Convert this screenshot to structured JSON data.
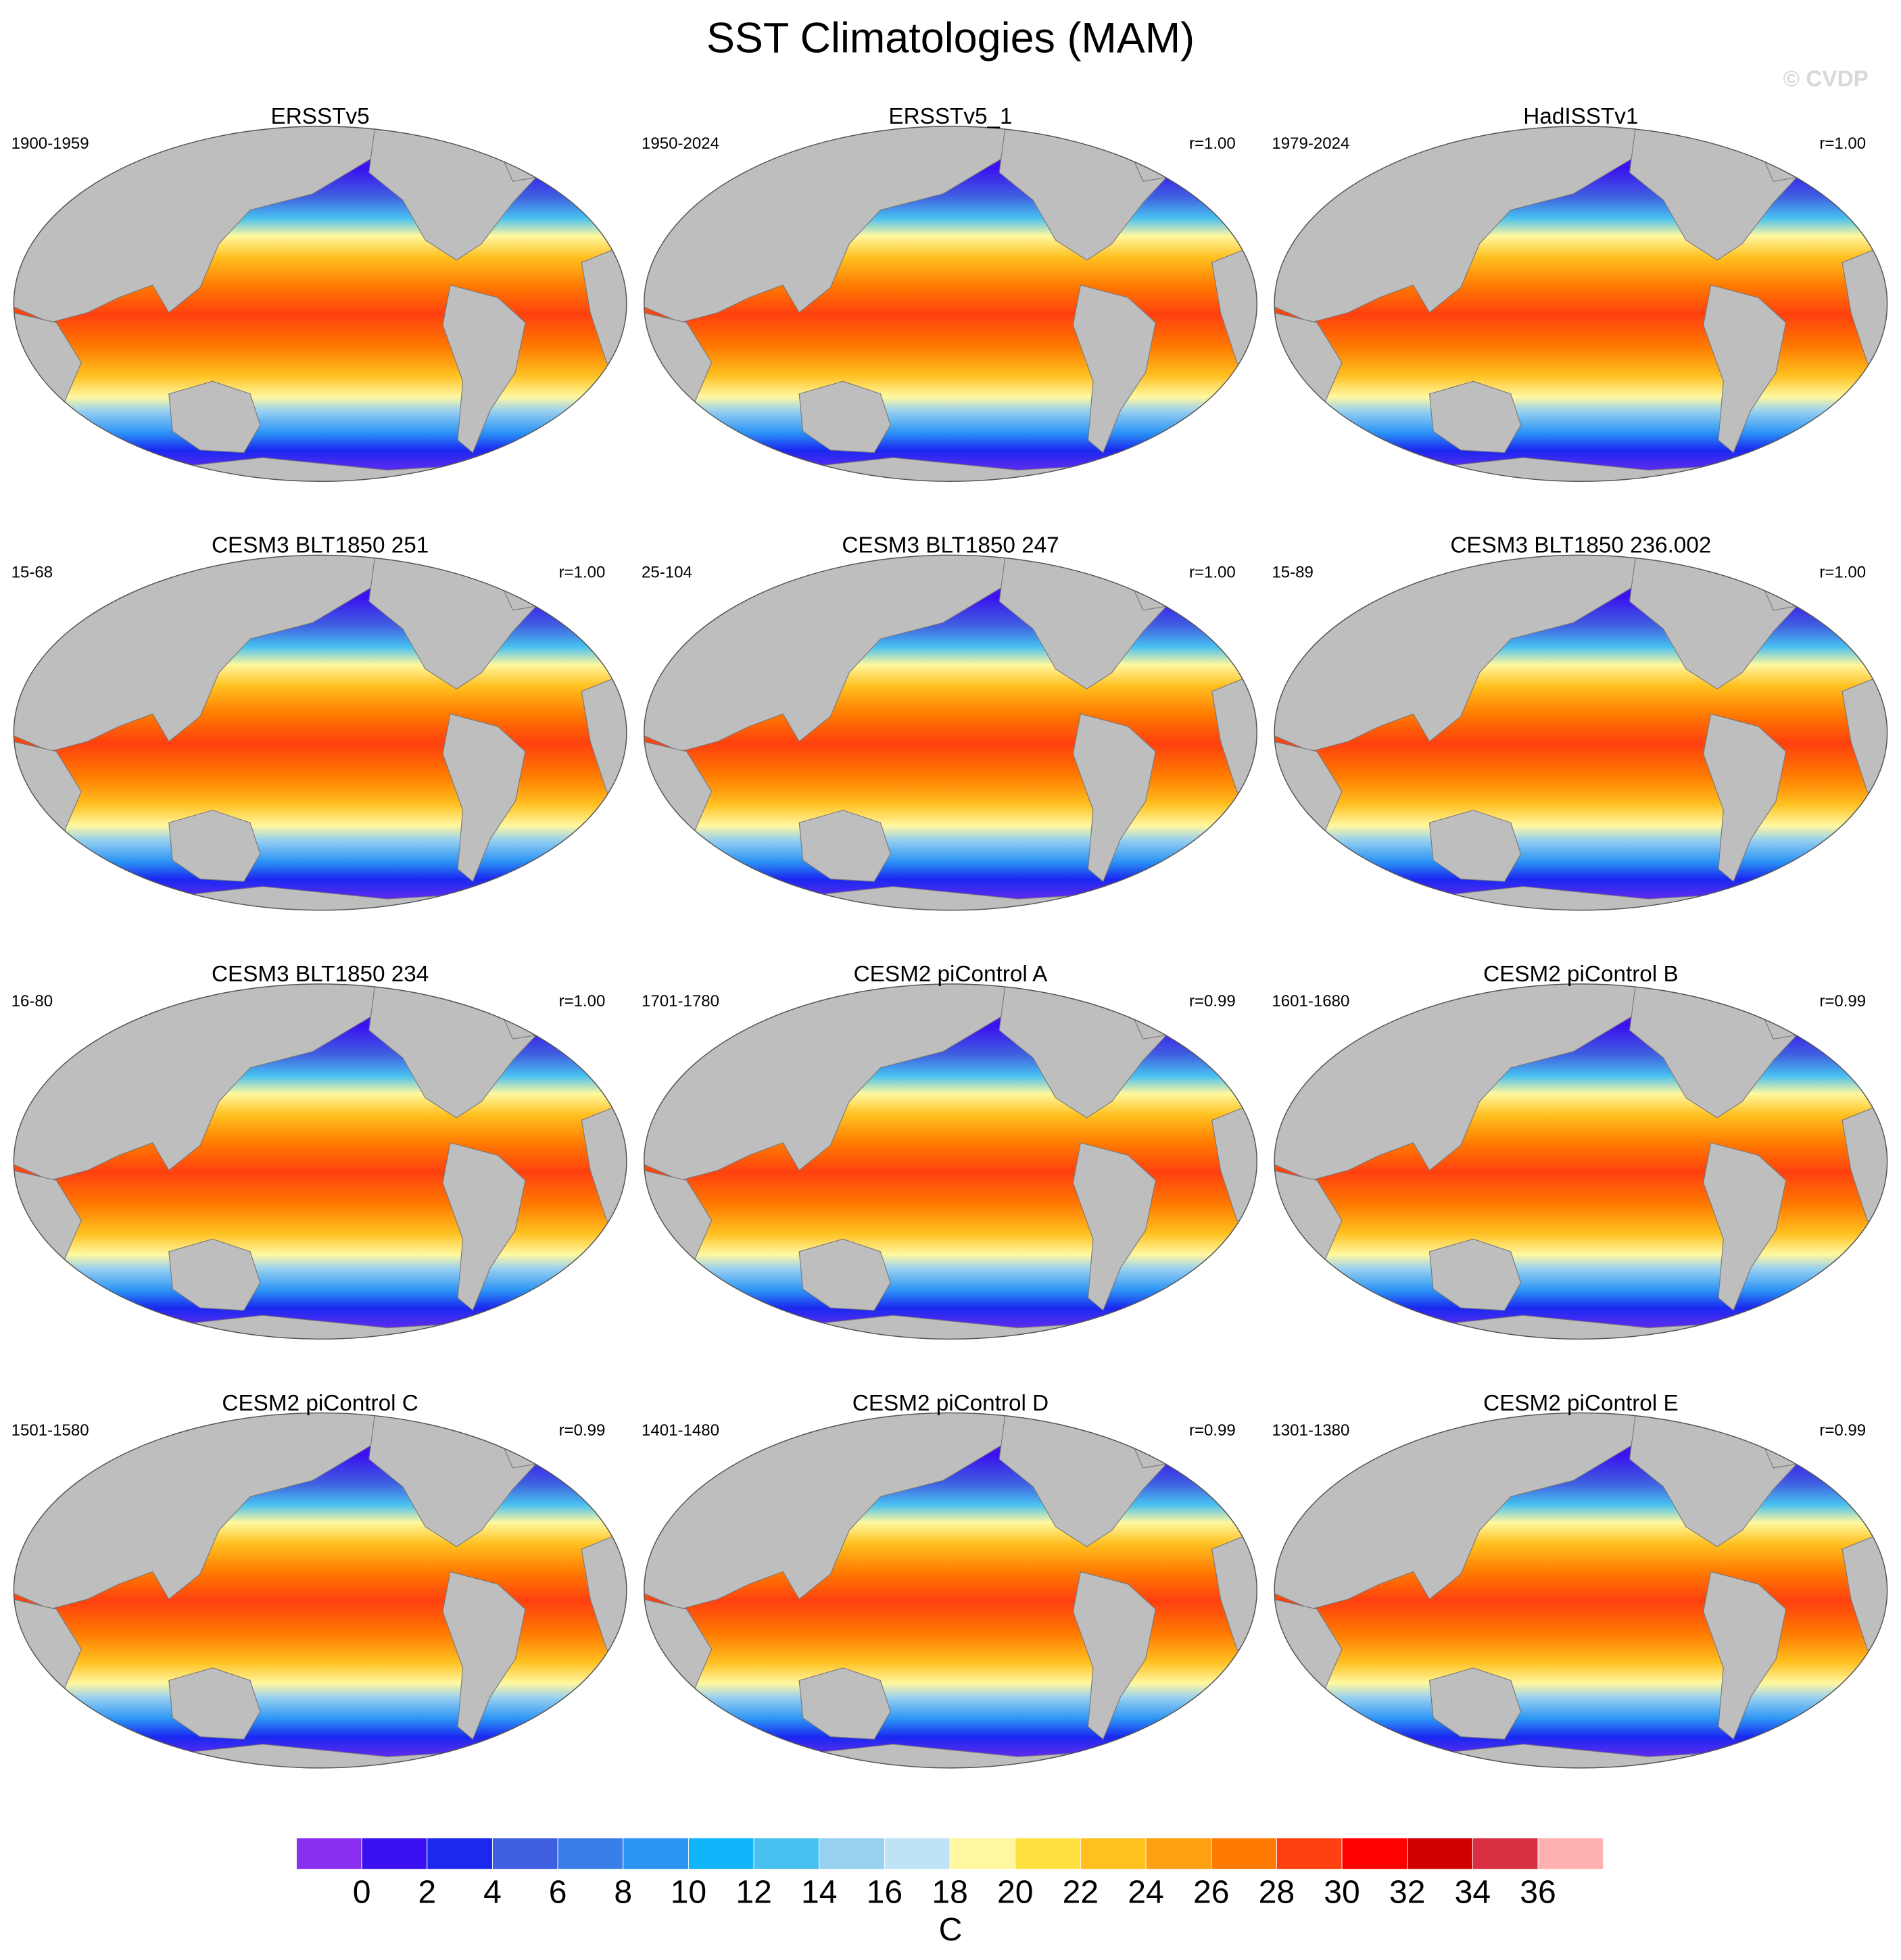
{
  "title": "SST Climatologies (MAM)",
  "watermark": "© CVDP",
  "panels": [
    {
      "title": "ERSSTv5",
      "period": "1900-1959"
    },
    {
      "title": "ERSSTv5_1",
      "period": "1950-2024",
      "r": "r=1.00"
    },
    {
      "title": "HadISSTv1",
      "period": "1979-2024",
      "r": "r=1.00"
    },
    {
      "title": "CESM3 BLT1850 251",
      "period": "15-68",
      "r": "r=1.00"
    },
    {
      "title": "CESM3 BLT1850 247",
      "period": "25-104",
      "r": "r=1.00"
    },
    {
      "title": "CESM3 BLT1850 236.002",
      "period": "15-89",
      "r": "r=1.00"
    },
    {
      "title": "CESM3 BLT1850 234",
      "period": "16-80",
      "r": "r=1.00"
    },
    {
      "title": "CESM2 piControl A",
      "period": "1701-1780",
      "r": "r=0.99"
    },
    {
      "title": "CESM2 piControl B",
      "period": "1601-1680",
      "r": "r=0.99"
    },
    {
      "title": "CESM2 piControl C",
      "period": "1501-1580",
      "r": "r=0.99"
    },
    {
      "title": "CESM2 piControl D",
      "period": "1401-1480",
      "r": "r=0.99"
    },
    {
      "title": "CESM2 piControl E",
      "period": "1301-1380",
      "r": "r=0.99"
    }
  ],
  "colorbar": {
    "levels": [
      0,
      2,
      4,
      6,
      8,
      10,
      12,
      14,
      16,
      18,
      20,
      22,
      24,
      26,
      28,
      30,
      32,
      34,
      36
    ],
    "colors": [
      "#8a2ef0",
      "#3a10f0",
      "#1a28f0",
      "#3f5fe0",
      "#3a7ee8",
      "#2b94f5",
      "#10b4f8",
      "#48c0f0",
      "#98d0f0",
      "#bde3f5",
      "#fff8a0",
      "#ffe040",
      "#ffc020",
      "#ffa010",
      "#ff7a00",
      "#ff4010",
      "#ff0000",
      "#d00000",
      "#d83040",
      "#ffb0b0"
    ],
    "label": "C"
  }
}
